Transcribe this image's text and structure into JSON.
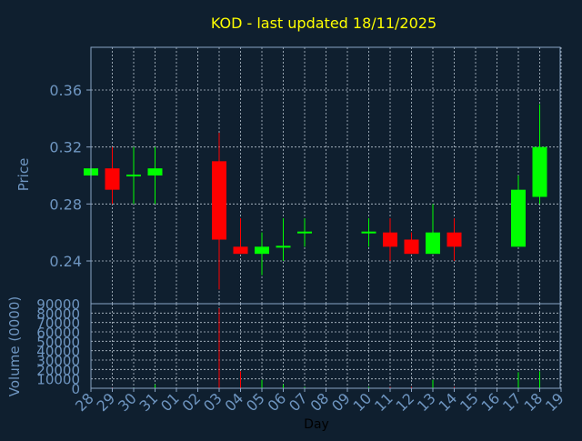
{
  "chart_data": {
    "type": "candlestick",
    "title": "KOD - last updated 18/11/2025",
    "xlabel": "Day",
    "ylabel_price": "Price",
    "ylabel_volume": "Volume (0000)",
    "price_ylim": [
      0.21,
      0.39
    ],
    "price_ticks": [
      "0.24",
      "0.28",
      "0.32",
      "0.36"
    ],
    "volume_ylim": [
      0,
      90000
    ],
    "volume_ticks": [
      "0",
      "10000",
      "20000",
      "30000",
      "40000",
      "50000",
      "60000",
      "70000",
      "80000",
      "90000"
    ],
    "x_ticks": [
      "28",
      "29",
      "30",
      "31",
      "01",
      "02",
      "03",
      "04",
      "05",
      "06",
      "07",
      "08",
      "09",
      "10",
      "11",
      "12",
      "13",
      "14",
      "15",
      "16",
      "17",
      "18",
      "19"
    ],
    "grid": true,
    "colors": {
      "background": "#0f1f2f",
      "title": "#ffff00",
      "axis_text": "#6e95c0",
      "axis_line": "#8aa4c4",
      "grid": "#b7c3cf",
      "up": "#00ff00",
      "down": "#ff0000"
    },
    "candles": [
      {
        "day": "28",
        "open": 0.3,
        "high": 0.305,
        "low": 0.3,
        "close": 0.305,
        "volume": 500
      },
      {
        "day": "29",
        "open": 0.305,
        "high": 0.32,
        "low": 0.28,
        "close": 0.29,
        "volume": 700
      },
      {
        "day": "30",
        "open": 0.3,
        "high": 0.32,
        "low": 0.28,
        "close": 0.3,
        "volume": 600
      },
      {
        "day": "31",
        "open": 0.3,
        "high": 0.32,
        "low": 0.28,
        "close": 0.305,
        "volume": 4000
      },
      {
        "day": "03",
        "open": 0.31,
        "high": 0.33,
        "low": 0.22,
        "close": 0.255,
        "volume": 85000
      },
      {
        "day": "04",
        "open": 0.25,
        "high": 0.27,
        "low": 0.245,
        "close": 0.245,
        "volume": 18000
      },
      {
        "day": "05",
        "open": 0.245,
        "high": 0.26,
        "low": 0.23,
        "close": 0.25,
        "volume": 9000
      },
      {
        "day": "06",
        "open": 0.25,
        "high": 0.27,
        "low": 0.24,
        "close": 0.25,
        "volume": 4000
      },
      {
        "day": "07",
        "open": 0.26,
        "high": 0.27,
        "low": 0.25,
        "close": 0.26,
        "volume": 1500
      },
      {
        "day": "10",
        "open": 0.26,
        "high": 0.27,
        "low": 0.25,
        "close": 0.26,
        "volume": 1500
      },
      {
        "day": "11",
        "open": 0.26,
        "high": 0.27,
        "low": 0.24,
        "close": 0.25,
        "volume": 1500
      },
      {
        "day": "12",
        "open": 0.255,
        "high": 0.26,
        "low": 0.245,
        "close": 0.245,
        "volume": 1500
      },
      {
        "day": "13",
        "open": 0.245,
        "high": 0.28,
        "low": 0.245,
        "close": 0.26,
        "volume": 9000
      },
      {
        "day": "14",
        "open": 0.26,
        "high": 0.27,
        "low": 0.24,
        "close": 0.25,
        "volume": 1500
      },
      {
        "day": "17",
        "open": 0.25,
        "high": 0.3,
        "low": 0.25,
        "close": 0.29,
        "volume": 17000
      },
      {
        "day": "18",
        "open": 0.285,
        "high": 0.35,
        "low": 0.28,
        "close": 0.32,
        "volume": 18000
      }
    ]
  }
}
